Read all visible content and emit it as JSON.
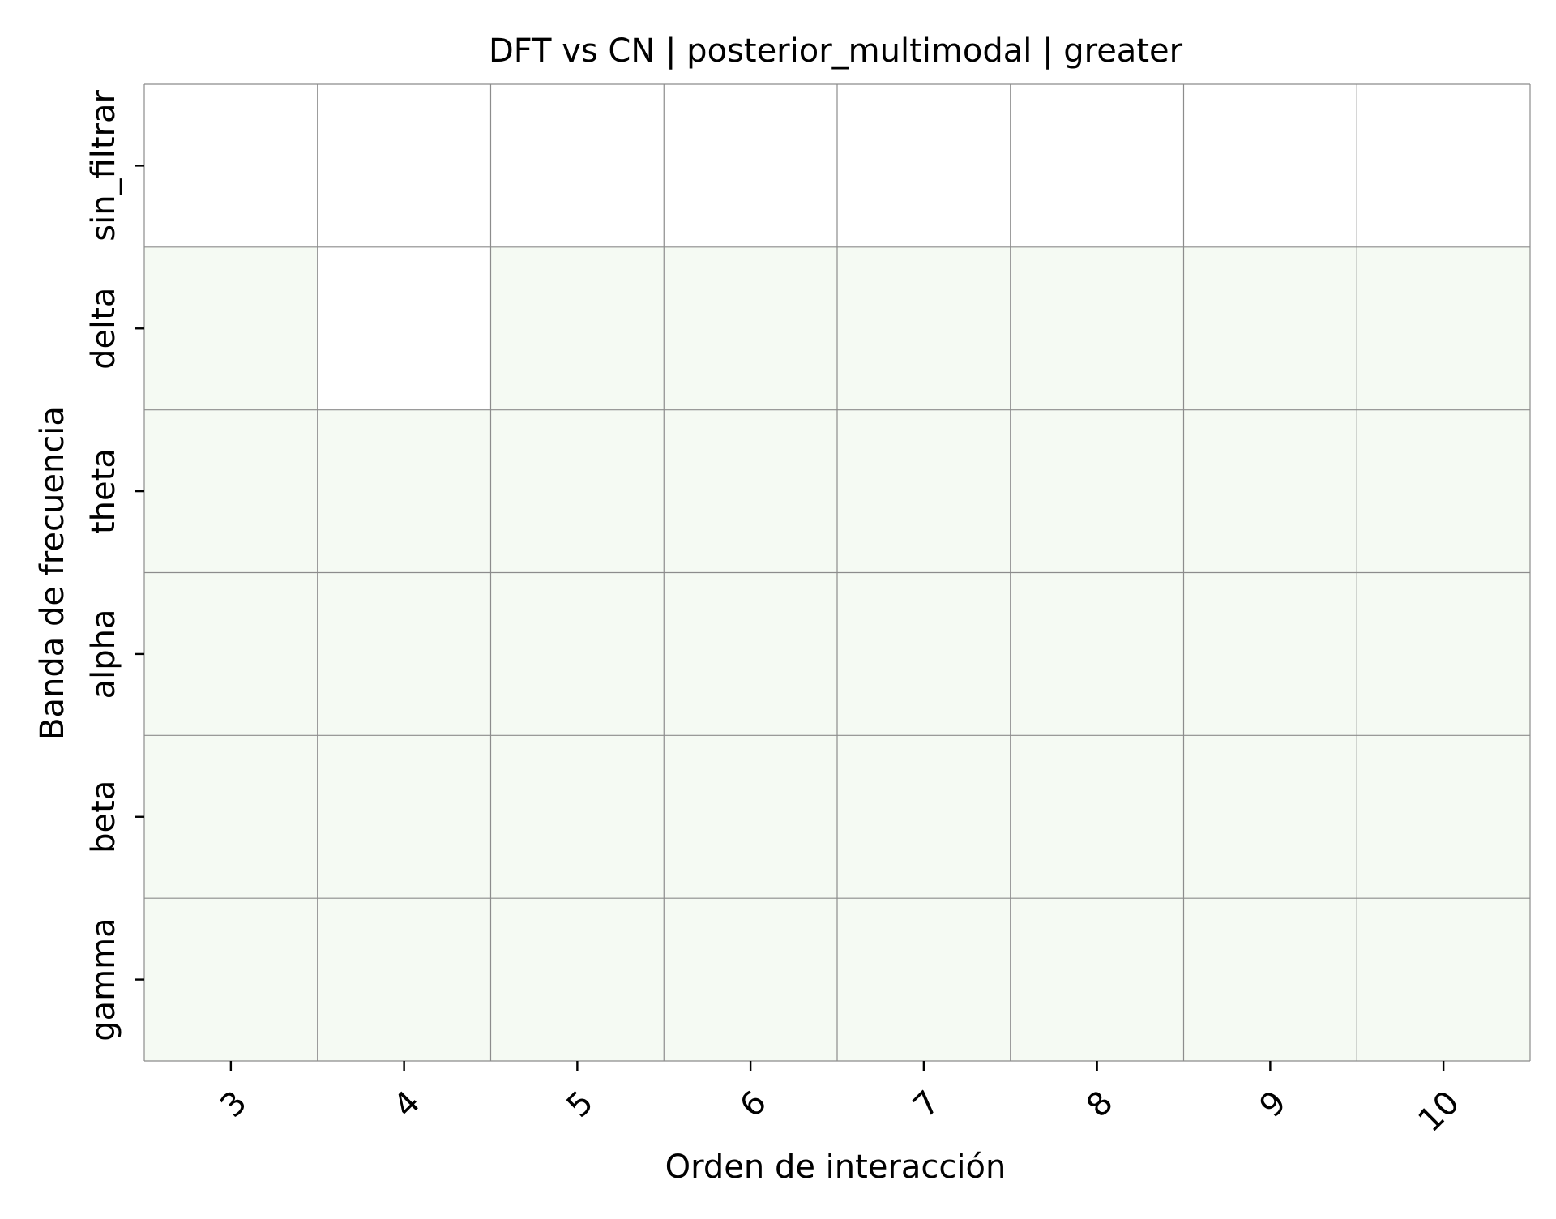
{
  "chart_data": {
    "type": "heatmap",
    "title": "DFT vs CN | posterior_multimodal | greater",
    "xlabel": "Orden de interacción",
    "ylabel": "Banda de frecuencia",
    "x_categories": [
      "3",
      "4",
      "5",
      "6",
      "7",
      "8",
      "9",
      "10"
    ],
    "y_categories": [
      "sin_filtrar",
      "delta",
      "theta",
      "alpha",
      "beta",
      "gamma"
    ],
    "values": [
      [
        0,
        0,
        0,
        0,
        0,
        0,
        0,
        0
      ],
      [
        1,
        0,
        1,
        1,
        1,
        1,
        1,
        1
      ],
      [
        1,
        1,
        1,
        1,
        1,
        1,
        1,
        1
      ],
      [
        1,
        1,
        1,
        1,
        1,
        1,
        1,
        1
      ],
      [
        1,
        1,
        1,
        1,
        1,
        1,
        1,
        1
      ],
      [
        1,
        1,
        1,
        1,
        1,
        1,
        1,
        1
      ]
    ],
    "colormap": {
      "low": "#ffffff",
      "high": "#f5faf3"
    },
    "gridline_color": "#8c8c8c",
    "colorbar": false
  }
}
